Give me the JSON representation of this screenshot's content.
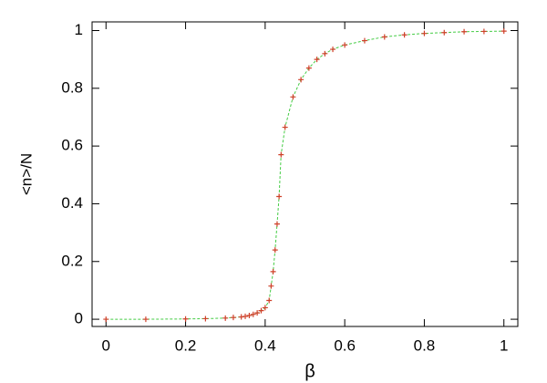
{
  "chart_data": {
    "type": "scatter",
    "xlabel": "β",
    "ylabel": "<n>/N",
    "x": [
      0,
      0.1,
      0.2,
      0.25,
      0.3,
      0.32,
      0.34,
      0.35,
      0.36,
      0.37,
      0.38,
      0.39,
      0.4,
      0.41,
      0.415,
      0.42,
      0.425,
      0.43,
      0.435,
      0.44,
      0.45,
      0.47,
      0.49,
      0.51,
      0.53,
      0.55,
      0.57,
      0.6,
      0.65,
      0.7,
      0.75,
      0.8,
      0.85,
      0.9,
      0.95,
      1
    ],
    "series": [
      {
        "color": "#d0402a",
        "line_color": "#44cc44",
        "values": [
          0,
          0,
          0.001,
          0.002,
          0.004,
          0.006,
          0.008,
          0.01,
          0.013,
          0.017,
          0.022,
          0.03,
          0.04,
          0.065,
          0.115,
          0.165,
          0.24,
          0.33,
          0.425,
          0.57,
          0.665,
          0.77,
          0.83,
          0.87,
          0.9,
          0.92,
          0.935,
          0.95,
          0.965,
          0.978,
          0.985,
          0.99,
          0.993,
          0.996,
          0.997,
          0.998
        ]
      }
    ],
    "xlim": [
      -0.035,
      1.035
    ],
    "ylim": [
      -0.025,
      1.03
    ],
    "xticks": [
      0,
      0.2,
      0.4,
      0.6,
      0.8,
      1
    ],
    "yticks": [
      0,
      0.2,
      0.4,
      0.6,
      0.8,
      1
    ],
    "grid": false
  }
}
